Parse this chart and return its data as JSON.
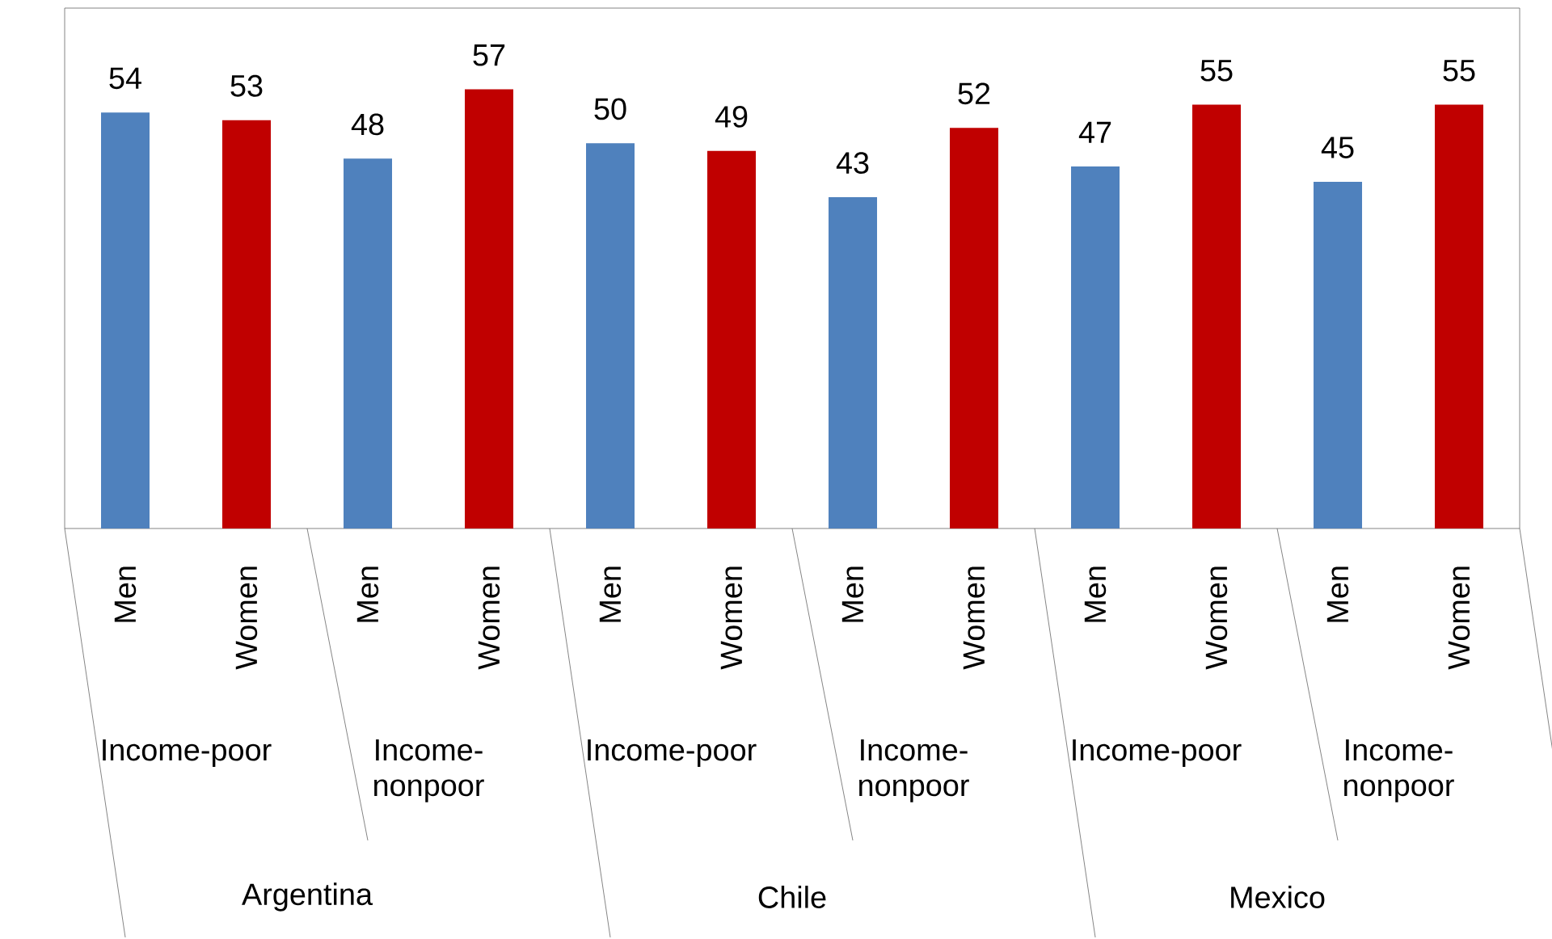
{
  "chart_data": {
    "type": "bar",
    "categories": [
      "Men",
      "Women",
      "Men",
      "Women",
      "Men",
      "Women",
      "Men",
      "Women",
      "Men",
      "Women",
      "Men",
      "Women"
    ],
    "values": [
      54,
      53,
      48,
      57,
      50,
      49,
      43,
      52,
      47,
      55,
      45,
      55
    ],
    "colors": [
      "#4f81bd",
      "#c00000",
      "#4f81bd",
      "#c00000",
      "#4f81bd",
      "#c00000",
      "#4f81bd",
      "#c00000",
      "#4f81bd",
      "#c00000",
      "#4f81bd",
      "#c00000"
    ],
    "data_labels": true,
    "annotations": [
      "Income-poor",
      "Income-nonpoor",
      "Income-poor",
      "Income-nonpoor",
      "Income-poor",
      "Income-nonpoor",
      "Argentina",
      "Chile",
      "Mexico"
    ]
  }
}
